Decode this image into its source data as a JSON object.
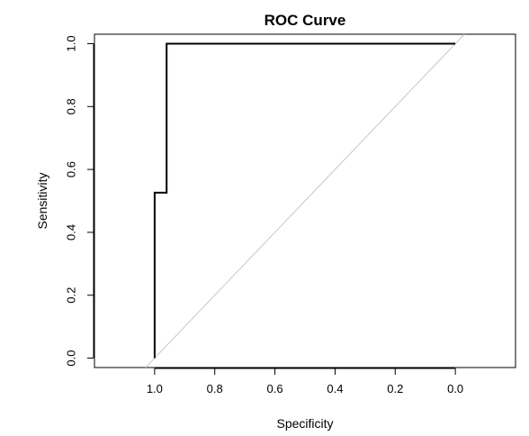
{
  "chart_data": {
    "type": "line",
    "title": "ROC Curve",
    "xlabel": "Specificity",
    "ylabel": "Sensitivity",
    "x_reversed": true,
    "xlim": [
      1.2,
      -0.2
    ],
    "ylim": [
      -0.03,
      1.03
    ],
    "x_ticks": [
      1.0,
      0.8,
      0.6,
      0.4,
      0.2,
      0.0
    ],
    "x_tick_labels": [
      "1.0",
      "0.8",
      "0.6",
      "0.4",
      "0.2",
      "0.0"
    ],
    "y_ticks": [
      0.0,
      0.2,
      0.4,
      0.6,
      0.8,
      1.0
    ],
    "y_tick_labels": [
      "0.0",
      "0.2",
      "0.4",
      "0.6",
      "0.8",
      "1.0"
    ],
    "grid": false,
    "series": [
      {
        "x": [
          1.0,
          1.0,
          0.96,
          0.96,
          0.0
        ],
        "y": [
          0.0,
          0.526,
          0.526,
          1.0,
          1.0
        ],
        "color": "#000000"
      }
    ],
    "reference_line": {
      "x": [
        1.0,
        0.0
      ],
      "y": [
        0.0,
        1.0
      ],
      "color": "#c8c8c8"
    }
  }
}
